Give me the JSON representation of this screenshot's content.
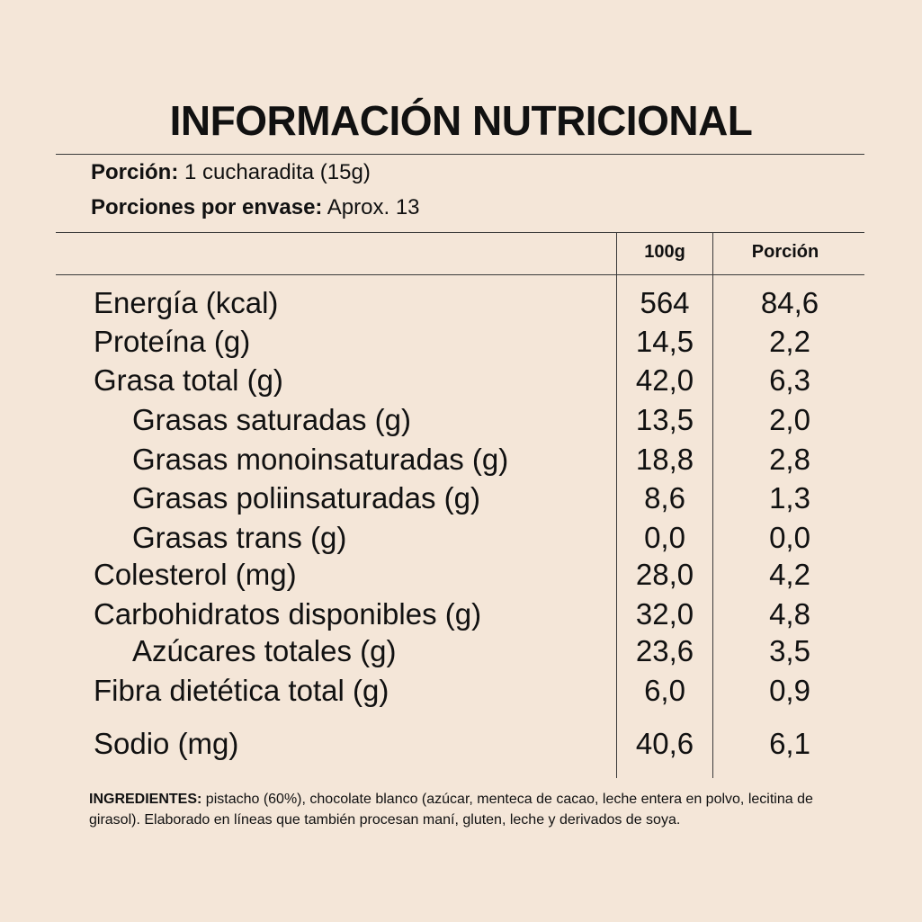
{
  "title": "INFORMACIÓN NUTRICIONAL",
  "serving": {
    "portion_label": "Porción:",
    "portion_value": "1 cucharadita (15g)",
    "servings_label": "Porciones por envase:",
    "servings_value": "Aprox. 13"
  },
  "columns": {
    "per100": "100g",
    "perPortion": "Porción"
  },
  "rows": [
    {
      "label": "Energía (kcal)",
      "per100": "564",
      "portion": "84,6"
    },
    {
      "label": "Proteína (g)",
      "per100": "14,5",
      "portion": "2,2"
    },
    {
      "label": "Grasa total (g)",
      "per100": "42,0",
      "portion": "6,3"
    },
    {
      "label": "Grasas saturadas (g)",
      "per100": "13,5",
      "portion": "2,0"
    },
    {
      "label": "Grasas monoinsaturadas (g)",
      "per100": "18,8",
      "portion": "2,8"
    },
    {
      "label": "Grasas poliinsaturadas (g)",
      "per100": "8,6",
      "portion": "1,3"
    },
    {
      "label": "Grasas trans (g)",
      "per100": "0,0",
      "portion": "0,0"
    },
    {
      "label": "Colesterol (mg)",
      "per100": "28,0",
      "portion": "4,2"
    },
    {
      "label": "Carbohidratos disponibles (g)",
      "per100": "32,0",
      "portion": "4,8"
    },
    {
      "label": "Azúcares totales (g)",
      "per100": "23,6",
      "portion": "3,5"
    },
    {
      "label": "Fibra dietética total (g)",
      "per100": "6,0",
      "portion": "0,9"
    },
    {
      "label": "Sodio (mg)",
      "per100": "40,6",
      "portion": "6,1"
    }
  ],
  "ingredients": {
    "label": "INGREDIENTES:",
    "text": " pistacho (60%), chocolate blanco (azúcar, menteca de cacao, leche entera en polvo, lecitina de girasol). Elaborado en líneas que también procesan maní, gluten, leche y derivados de soya."
  },
  "colors": {
    "background": "#f4e6d8",
    "text": "#111111",
    "rule": "#3a3a3a"
  }
}
